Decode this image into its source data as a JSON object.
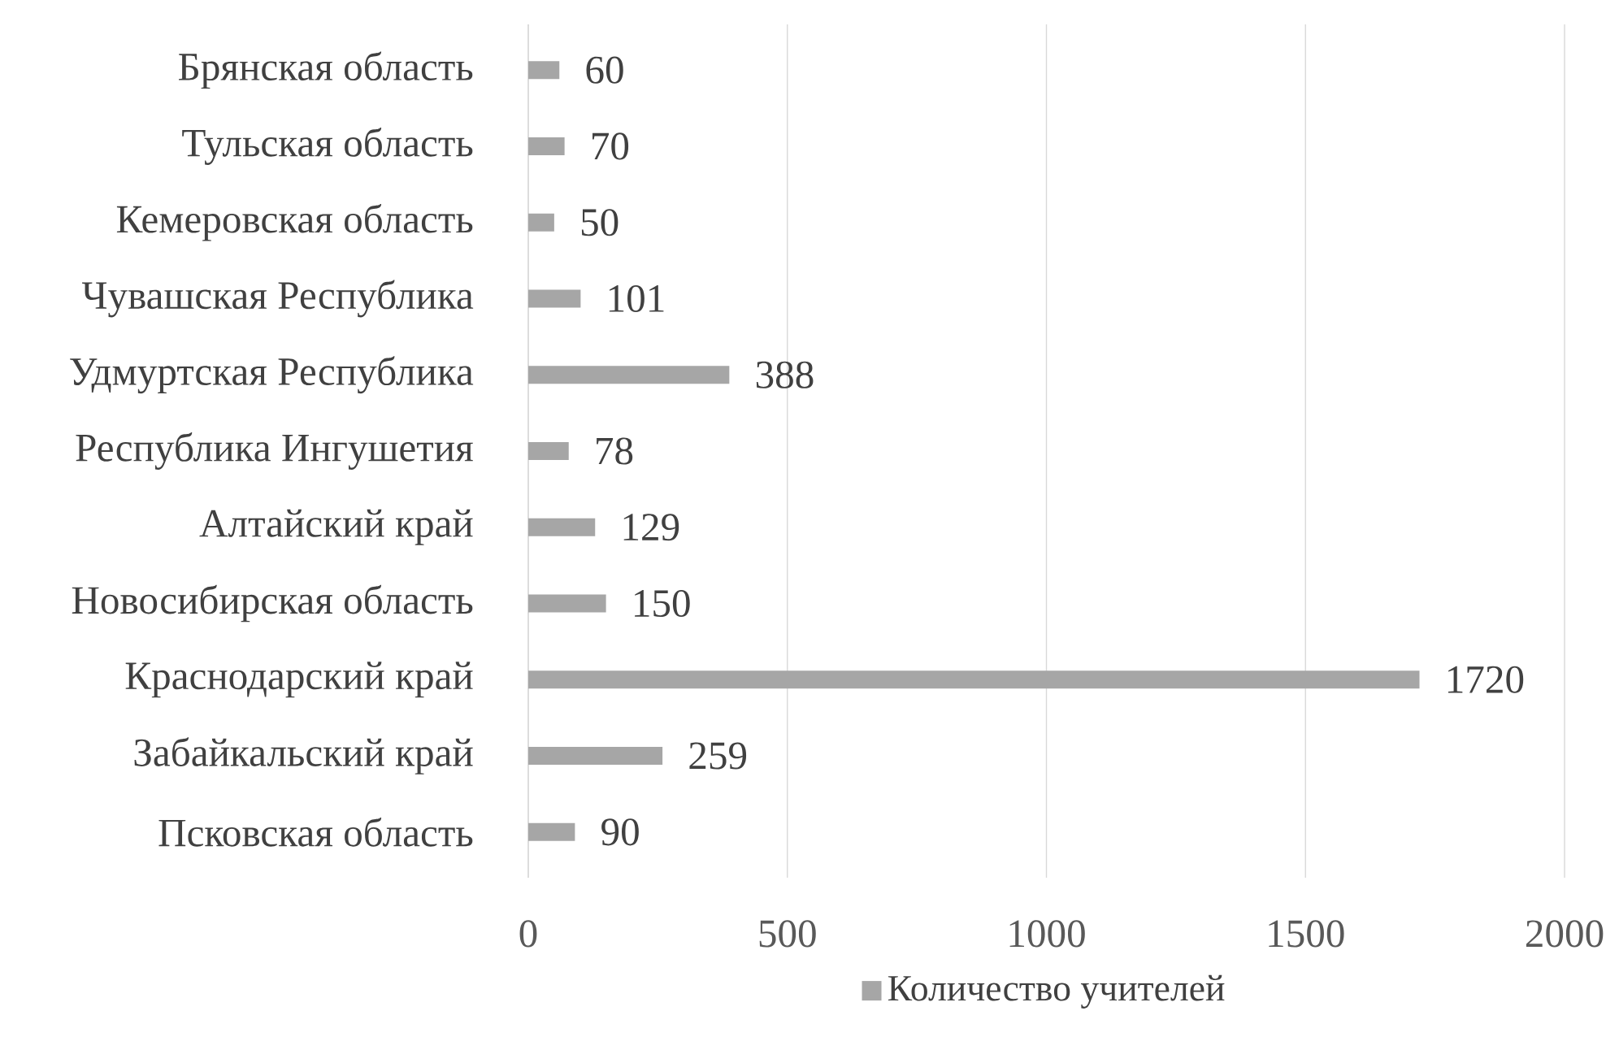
{
  "chart_data": {
    "type": "bar",
    "orientation": "horizontal",
    "categories": [
      "Брянская область",
      "Тульская область",
      "Кемеровская область",
      "Чувашская Республика",
      "Удмуртская Республика",
      "Республика Ингушетия",
      "Алтайский край",
      "Новосибирская область",
      "Краснодарский край",
      "Забайкальский край",
      "Псковская область"
    ],
    "series": [
      {
        "name": "Количество учителей",
        "color": "#a6a6a6",
        "values": [
          60,
          70,
          50,
          101,
          388,
          78,
          129,
          150,
          1720,
          259,
          90
        ]
      }
    ],
    "xlim": [
      0,
      2000
    ],
    "xticks": [
      0,
      500,
      1000,
      1500,
      2000
    ],
    "grid": "x",
    "legend": "bottom",
    "data_labels": true
  }
}
